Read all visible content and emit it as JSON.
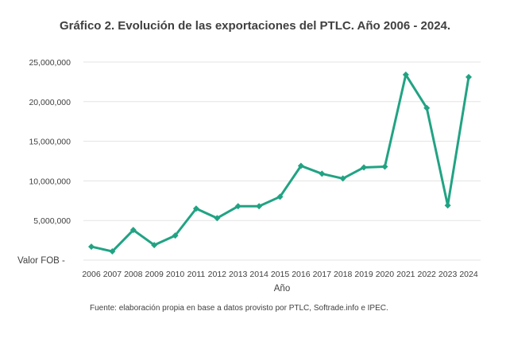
{
  "chart_data": {
    "type": "line",
    "title": "Gráfico 2. Evolución de las exportaciones del PTLC. Año 2006 - 2024.",
    "xlabel": "Año",
    "ylabel": "",
    "zero_label": "Valor FOB  -",
    "x": [
      "2006",
      "2007",
      "2008",
      "2009",
      "2010",
      "2011",
      "2012",
      "2013",
      "2014",
      "2015",
      "2016",
      "2017",
      "2018",
      "2019",
      "2020",
      "2021",
      "2022",
      "2023",
      "2024"
    ],
    "series": [
      {
        "name": "Valor FOB",
        "color": "#21a383",
        "values": [
          1700000,
          1100000,
          3800000,
          1900000,
          3100000,
          6500000,
          5300000,
          6800000,
          6800000,
          8000000,
          11900000,
          10900000,
          10300000,
          11700000,
          11800000,
          23400000,
          19200000,
          6900000,
          23100000
        ]
      }
    ],
    "ylim": [
      0,
      25000000
    ],
    "yticks": [
      5000000,
      10000000,
      15000000,
      20000000,
      25000000
    ],
    "ytick_labels": [
      "5,000,000",
      "10,000,000",
      "15,000,000",
      "20,000,000",
      "25,000,000"
    ],
    "grid": true,
    "legend": "none"
  },
  "source": "Fuente: elaboración propia en base a datos provisto por PTLC, Softrade.info e IPEC."
}
